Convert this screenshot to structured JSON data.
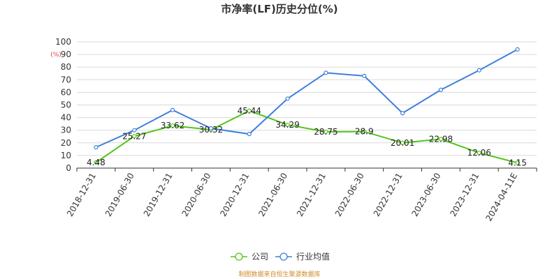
{
  "chart_data": {
    "type": "line",
    "title": "市净率(LF)历史分位(%)",
    "y_unit": "(%)",
    "ylim": [
      0,
      100
    ],
    "y_ticks": [
      0,
      10,
      20,
      30,
      40,
      50,
      60,
      70,
      80,
      90,
      100
    ],
    "grid": true,
    "legend_position": "bottom",
    "categories": [
      "2018-12-31",
      "2019-06-30",
      "2019-12-31",
      "2020-06-30",
      "2020-12-31",
      "2021-06-30",
      "2021-12-31",
      "2022-06-30",
      "2022-12-31",
      "2023-06-30",
      "2023-12-31",
      "2024-04-11E"
    ],
    "series": [
      {
        "name": "公司",
        "color": "#52c41a",
        "values": [
          4.48,
          25.27,
          33.62,
          30.32,
          45.44,
          34.29,
          28.75,
          28.9,
          20.01,
          22.98,
          12.06,
          4.15
        ],
        "labels": [
          "4.48",
          "25.27",
          "33.62",
          "30.32",
          "45.44",
          "34.29",
          "28.75",
          "28.9",
          "20.01",
          "22.98",
          "12.06",
          "4.15"
        ]
      },
      {
        "name": "行业均值",
        "color": "#3f7fdc",
        "values": [
          16.5,
          30,
          46,
          31.5,
          27,
          55,
          75.5,
          73,
          43.5,
          62,
          77.5,
          94
        ]
      }
    ],
    "source": "制图数据来自恒生聚源数据库"
  }
}
